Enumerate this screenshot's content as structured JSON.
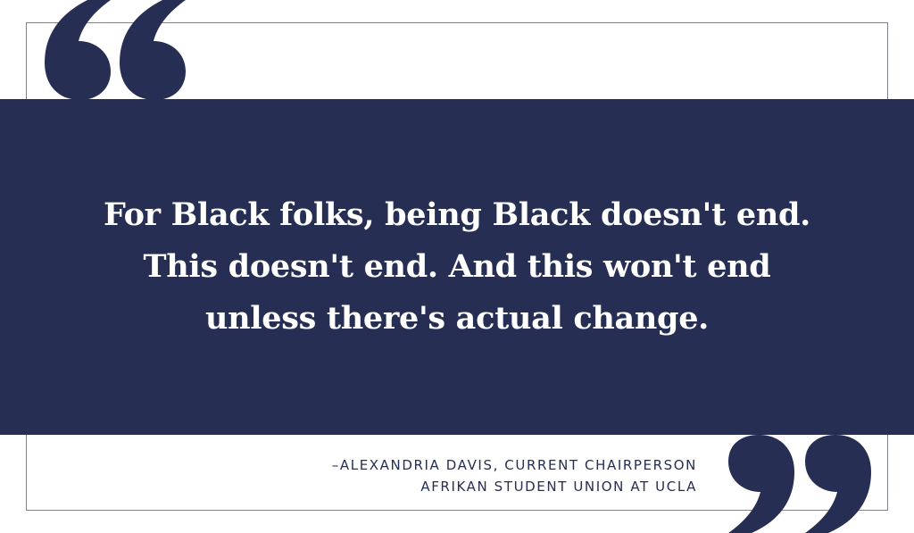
{
  "quote": {
    "lines": [
      "For Black folks, being Black doesn't end.",
      "This doesn't end. And this won't end",
      "unless there's actual change."
    ]
  },
  "attribution": {
    "line1": "–ALEXANDRIA DAVIS, CURRENT CHAIRPERSON",
    "line2": "AFRIKAN STUDENT UNION AT UCLA"
  },
  "colors": {
    "navy": "#262e53",
    "frame": "#7c8196",
    "background": "#ffffff",
    "text_on_band": "#ffffff"
  },
  "icons": {
    "open_quote": "open-quote-icon",
    "close_quote": "close-quote-icon"
  }
}
